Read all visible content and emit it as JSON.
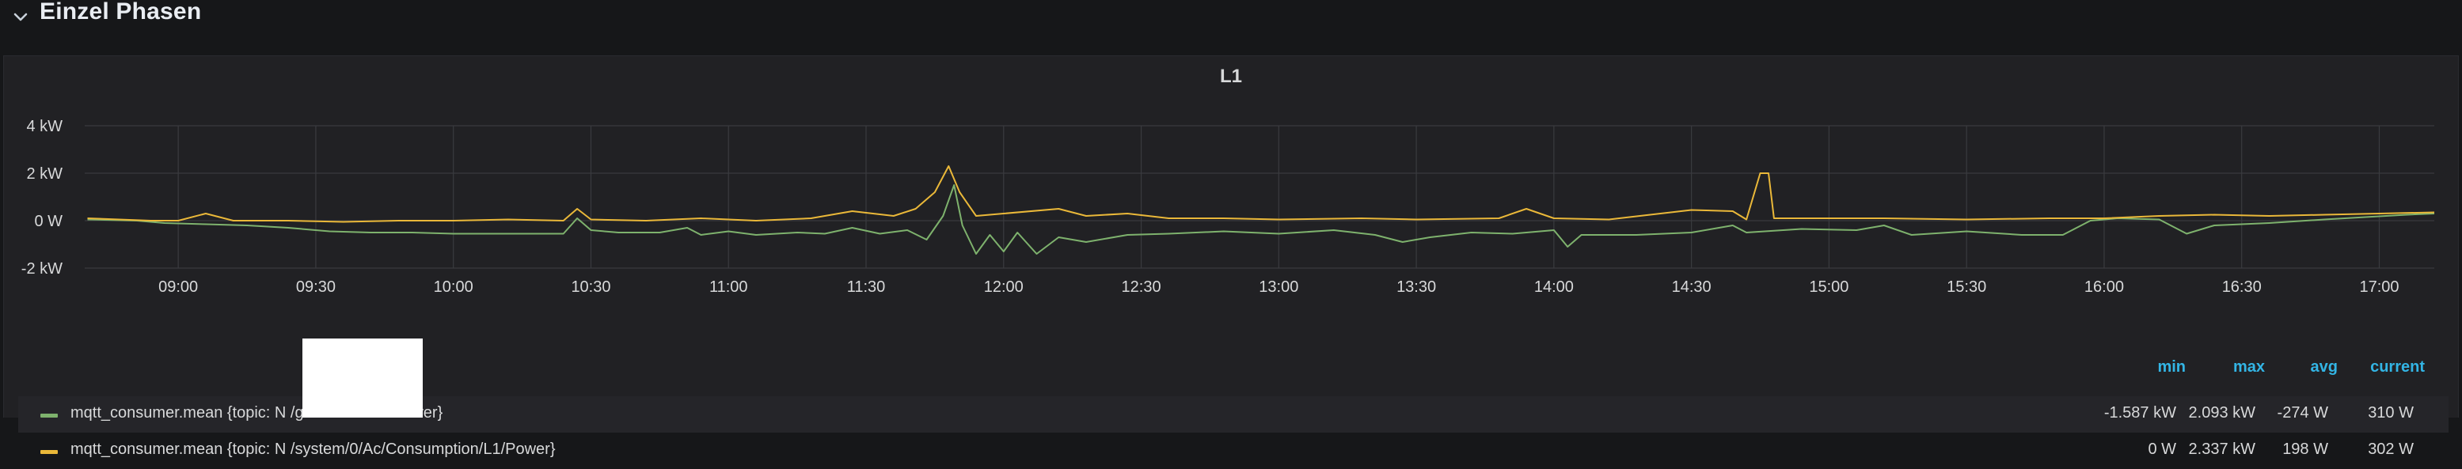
{
  "row": {
    "title": "Einzel Phasen",
    "chevron_icon": "chevron-down-icon"
  },
  "panel": {
    "title": "L1"
  },
  "chart_data": {
    "type": "line",
    "title": "L1",
    "y_ticks": [
      "4 kW",
      "2 kW",
      "0 W",
      "-2 kW"
    ],
    "y_tick_values": [
      4,
      2,
      0,
      -2
    ],
    "ylim": [
      -2,
      4
    ],
    "x_ticks": [
      "09:00",
      "09:30",
      "10:00",
      "10:30",
      "11:00",
      "11:30",
      "12:00",
      "12:30",
      "13:00",
      "13:30",
      "14:00",
      "14:30",
      "15:00",
      "15:30",
      "16:00",
      "16:30",
      "17:00"
    ],
    "x_tick_hours": [
      9,
      9.5,
      10,
      10.5,
      11,
      11.5,
      12,
      12.5,
      13,
      13.5,
      14,
      14.5,
      15,
      15.5,
      16,
      16.5,
      17
    ],
    "xlim": [
      8.66,
      17.2
    ],
    "grid": true,
    "series": [
      {
        "name": "mqtt_consumer.mean {topic: N      /grid/30/Ac/L1/Power}",
        "color": "#7eb26d",
        "unit": "kW",
        "points": [
          [
            8.67,
            0.05
          ],
          [
            8.85,
            0.0
          ],
          [
            8.95,
            -0.1
          ],
          [
            9.1,
            -0.15
          ],
          [
            9.25,
            -0.2
          ],
          [
            9.4,
            -0.3
          ],
          [
            9.55,
            -0.45
          ],
          [
            9.7,
            -0.5
          ],
          [
            9.85,
            -0.5
          ],
          [
            10.0,
            -0.55
          ],
          [
            10.2,
            -0.55
          ],
          [
            10.4,
            -0.55
          ],
          [
            10.45,
            0.1
          ],
          [
            10.5,
            -0.4
          ],
          [
            10.6,
            -0.5
          ],
          [
            10.75,
            -0.5
          ],
          [
            10.85,
            -0.3
          ],
          [
            10.9,
            -0.6
          ],
          [
            11.0,
            -0.45
          ],
          [
            11.1,
            -0.6
          ],
          [
            11.25,
            -0.5
          ],
          [
            11.35,
            -0.55
          ],
          [
            11.45,
            -0.3
          ],
          [
            11.55,
            -0.55
          ],
          [
            11.65,
            -0.4
          ],
          [
            11.72,
            -0.8
          ],
          [
            11.78,
            0.2
          ],
          [
            11.82,
            1.5
          ],
          [
            11.85,
            -0.2
          ],
          [
            11.9,
            -1.4
          ],
          [
            11.95,
            -0.6
          ],
          [
            12.0,
            -1.3
          ],
          [
            12.05,
            -0.5
          ],
          [
            12.12,
            -1.4
          ],
          [
            12.2,
            -0.7
          ],
          [
            12.3,
            -0.9
          ],
          [
            12.45,
            -0.6
          ],
          [
            12.6,
            -0.55
          ],
          [
            12.8,
            -0.45
          ],
          [
            13.0,
            -0.55
          ],
          [
            13.2,
            -0.4
          ],
          [
            13.35,
            -0.6
          ],
          [
            13.45,
            -0.9
          ],
          [
            13.55,
            -0.7
          ],
          [
            13.7,
            -0.5
          ],
          [
            13.85,
            -0.55
          ],
          [
            14.0,
            -0.4
          ],
          [
            14.05,
            -1.1
          ],
          [
            14.1,
            -0.6
          ],
          [
            14.3,
            -0.6
          ],
          [
            14.5,
            -0.5
          ],
          [
            14.6,
            -0.3
          ],
          [
            14.65,
            -0.2
          ],
          [
            14.7,
            -0.5
          ],
          [
            14.9,
            -0.35
          ],
          [
            15.1,
            -0.4
          ],
          [
            15.2,
            -0.2
          ],
          [
            15.3,
            -0.6
          ],
          [
            15.5,
            -0.45
          ],
          [
            15.7,
            -0.6
          ],
          [
            15.85,
            -0.6
          ],
          [
            15.95,
            0.0
          ],
          [
            16.05,
            0.1
          ],
          [
            16.2,
            0.05
          ],
          [
            16.3,
            -0.55
          ],
          [
            16.4,
            -0.2
          ],
          [
            16.6,
            -0.1
          ],
          [
            16.8,
            0.05
          ],
          [
            16.95,
            0.15
          ],
          [
            17.1,
            0.25
          ],
          [
            17.2,
            0.3
          ]
        ]
      },
      {
        "name": "mqtt_consumer.mean {topic: N      /system/0/Ac/Consumption/L1/Power}",
        "color": "#eab839",
        "unit": "kW",
        "points": [
          [
            8.67,
            0.1
          ],
          [
            8.9,
            0.0
          ],
          [
            9.0,
            0.0
          ],
          [
            9.1,
            0.3
          ],
          [
            9.2,
            0.0
          ],
          [
            9.4,
            0.0
          ],
          [
            9.6,
            -0.05
          ],
          [
            9.8,
            0.0
          ],
          [
            10.0,
            0.0
          ],
          [
            10.2,
            0.05
          ],
          [
            10.4,
            0.0
          ],
          [
            10.45,
            0.5
          ],
          [
            10.5,
            0.05
          ],
          [
            10.7,
            0.0
          ],
          [
            10.9,
            0.1
          ],
          [
            11.1,
            0.0
          ],
          [
            11.3,
            0.1
          ],
          [
            11.45,
            0.4
          ],
          [
            11.6,
            0.2
          ],
          [
            11.68,
            0.5
          ],
          [
            11.75,
            1.2
          ],
          [
            11.8,
            2.3
          ],
          [
            11.84,
            1.2
          ],
          [
            11.9,
            0.2
          ],
          [
            12.0,
            0.3
          ],
          [
            12.2,
            0.5
          ],
          [
            12.3,
            0.2
          ],
          [
            12.45,
            0.3
          ],
          [
            12.6,
            0.1
          ],
          [
            12.8,
            0.1
          ],
          [
            13.0,
            0.05
          ],
          [
            13.3,
            0.1
          ],
          [
            13.5,
            0.05
          ],
          [
            13.8,
            0.1
          ],
          [
            13.9,
            0.5
          ],
          [
            14.0,
            0.1
          ],
          [
            14.2,
            0.05
          ],
          [
            14.5,
            0.45
          ],
          [
            14.65,
            0.4
          ],
          [
            14.7,
            0.05
          ],
          [
            14.75,
            2.0
          ],
          [
            14.78,
            2.0
          ],
          [
            14.8,
            0.1
          ],
          [
            15.0,
            0.1
          ],
          [
            15.2,
            0.1
          ],
          [
            15.5,
            0.05
          ],
          [
            15.8,
            0.1
          ],
          [
            16.0,
            0.1
          ],
          [
            16.2,
            0.2
          ],
          [
            16.4,
            0.25
          ],
          [
            16.6,
            0.2
          ],
          [
            16.8,
            0.25
          ],
          [
            17.0,
            0.3
          ],
          [
            17.2,
            0.35
          ]
        ]
      }
    ]
  },
  "legend": {
    "columns": {
      "min": "min",
      "max": "max",
      "avg": "avg",
      "current": "current"
    },
    "rows": [
      {
        "name": "mqtt_consumer.mean {topic: N      /grid/30/Ac/L1/Power}",
        "color": "#7eb26d",
        "min": "-1.587 kW",
        "max": "2.093 kW",
        "avg": "-274 W",
        "current": "310 W"
      },
      {
        "name": "mqtt_consumer.mean {topic: N      /system/0/Ac/Consumption/L1/Power}",
        "color": "#eab839",
        "min": "0 W",
        "max": "2.337 kW",
        "avg": "198 W",
        "current": "302 W"
      }
    ]
  }
}
